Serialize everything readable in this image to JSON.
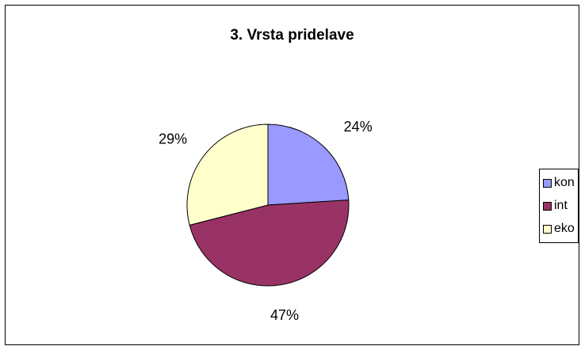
{
  "chart_data": {
    "type": "pie",
    "title": "3. Vrsta pridelave",
    "categories": [
      "kon",
      "int",
      "eko"
    ],
    "values": [
      24,
      47,
      29
    ],
    "value_labels": [
      "24%",
      "47%",
      "29%"
    ],
    "colors": [
      "#9999FF",
      "#993366",
      "#FFFFCC"
    ],
    "legend_position": "right"
  }
}
